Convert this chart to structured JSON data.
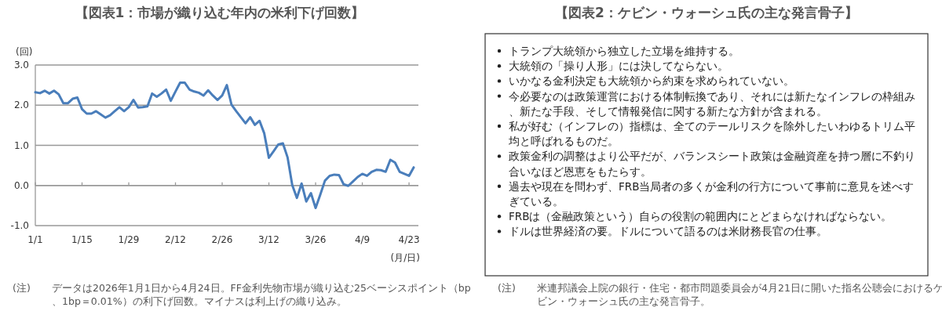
{
  "chart_data": [
    {
      "type": "line",
      "title": "【図表1：市場が織り込む年内の米利下げ回数】",
      "ylabel": "(回)",
      "xlabel": "(月/日)",
      "categories": [
        "1/1",
        null,
        null,
        null,
        null,
        null,
        null,
        null,
        null,
        null,
        "1/15",
        null,
        null,
        null,
        null,
        null,
        null,
        null,
        null,
        null,
        "1/29",
        null,
        null,
        null,
        null,
        null,
        null,
        null,
        null,
        null,
        "2/12",
        null,
        null,
        null,
        null,
        null,
        null,
        null,
        null,
        null,
        "2/26",
        null,
        null,
        null,
        null,
        null,
        null,
        null,
        null,
        null,
        "3/12",
        null,
        null,
        null,
        null,
        null,
        null,
        null,
        null,
        null,
        "3/26",
        null,
        null,
        null,
        null,
        null,
        null,
        null,
        null,
        null,
        "4/9",
        null,
        null,
        null,
        null,
        null,
        null,
        null,
        null,
        null,
        "4/23",
        null
      ],
      "series": [
        {
          "color": "#4a7ebb",
          "values": [
            2.32,
            2.3,
            2.36,
            2.29,
            2.36,
            2.27,
            2.05,
            2.05,
            2.16,
            2.19,
            1.9,
            1.79,
            1.79,
            1.85,
            1.77,
            1.69,
            1.75,
            1.85,
            1.95,
            1.85,
            1.95,
            2.13,
            1.94,
            1.95,
            1.97,
            2.29,
            2.21,
            2.29,
            2.39,
            2.11,
            2.34,
            2.56,
            2.56,
            2.39,
            2.34,
            2.31,
            2.24,
            2.37,
            2.24,
            2.13,
            2.24,
            2.5,
            2.01,
            1.85,
            1.7,
            1.55,
            1.7,
            1.51,
            1.61,
            1.3,
            0.69,
            0.85,
            1.02,
            1.05,
            0.7,
            0.01,
            -0.31,
            0.05,
            -0.4,
            -0.19,
            -0.56,
            -0.23,
            0.12,
            0.24,
            0.27,
            0.26,
            0.03,
            -0.01,
            0.1,
            0.21,
            0.29,
            0.24,
            0.34,
            0.39,
            0.38,
            0.34,
            0.64,
            0.57,
            0.34,
            0.29,
            0.24,
            0.45
          ]
        }
      ],
      "ylim": [
        -1,
        3
      ],
      "yticks": [
        {
          "value": -1,
          "label": "-1.0"
        },
        {
          "value": 0,
          "label": "0.0"
        },
        {
          "value": 1,
          "label": "1.0"
        },
        {
          "value": 2,
          "label": "2.0"
        },
        {
          "value": 3,
          "label": "3.0"
        }
      ],
      "grid": "y",
      "annotations": [
        "(注)　データは2026年1月1日から4月24日。FF金利先物市場が織り込む25ベーシスポイント（bp、1bp＝0.01%）の利下げ回数。マイナスは利上げの織り込み。"
      ]
    },
    {
      "type": "other",
      "title": "【図表2：ケビン・ウォーシュ氏の主な発言骨子】",
      "annotations": [
        "トランプ大統領から独立した立場を維持する。",
        "大統領の「操り人形」には決してならない。",
        "いかなる金利決定も大統領から約束を求められていない。",
        "今必要なのは政策運営における体制転換であり、それには新たなインフレの枠組み、新たな手段、そして情報発信に関する新たな方針が含まれる。",
        "私が好む（インフレの）指標は、全てのテールリスクを除外したいわゆるトリム平均と呼ばれるものだ。",
        "政策金利の調整はより公平だが、バランスシート政策は金融資産を持つ層に不釣り合いなほど恩恵をもたらす。",
        "過去や現在を問わず、FRB当局者の多くが金利の行方について事前に意見を述べすぎている。",
        "FRBは（金融政策という）自らの役割の範囲内にとどまらなければならない。",
        "ドルは世界経済の要。ドルについて語るのは米財務長官の仕事。",
        "(注)　米連邦議会上院の銀行・住宅・都市問題委員会が4月21日に開いた指名公聴会におけるケビン・ウォーシュ氏の主な発言骨子。"
      ]
    }
  ]
}
